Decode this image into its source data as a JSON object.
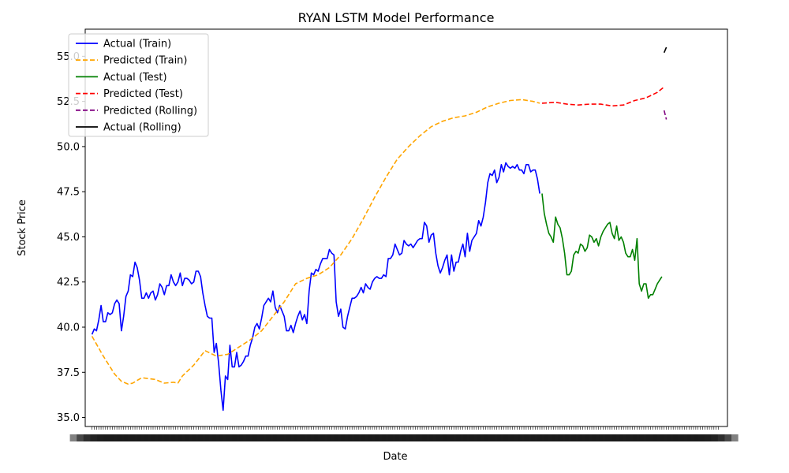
{
  "chart_data": {
    "type": "line",
    "title": "RYAN LSTM Model Performance",
    "xlabel": "Date",
    "ylabel": "Stock Price",
    "x_tick_labels_note": "",
    "xlim": [
      -3,
      281
    ],
    "ylim": [
      34.5,
      56.5
    ],
    "yticks": [
      35.0,
      37.5,
      40.0,
      42.5,
      45.0,
      47.5,
      50.0,
      52.5,
      55.0
    ],
    "ytick_labels": [
      "35.0",
      "37.5",
      "40.0",
      "42.5",
      "45.0",
      "47.5",
      "50.0",
      "52.5",
      "55.0"
    ],
    "x_tick_count": 278,
    "grid": false,
    "legend_position": "top-left",
    "series": [
      {
        "name": "Actual (Train)",
        "color": "#0000ff",
        "dash": "solid",
        "points": [
          [
            0,
            39.6
          ],
          [
            1,
            39.9
          ],
          [
            2,
            39.8
          ],
          [
            3,
            40.4
          ],
          [
            4,
            41.2
          ],
          [
            5,
            40.3
          ],
          [
            6,
            40.3
          ],
          [
            7,
            40.8
          ],
          [
            8,
            40.7
          ],
          [
            9,
            40.8
          ],
          [
            10,
            41.3
          ],
          [
            11,
            41.5
          ],
          [
            12,
            41.3
          ],
          [
            13,
            39.8
          ],
          [
            14,
            40.6
          ],
          [
            15,
            41.7
          ],
          [
            16,
            42.0
          ],
          [
            17,
            42.9
          ],
          [
            18,
            42.8
          ],
          [
            19,
            43.6
          ],
          [
            20,
            43.3
          ],
          [
            21,
            42.6
          ],
          [
            22,
            41.6
          ],
          [
            23,
            41.6
          ],
          [
            24,
            41.9
          ],
          [
            25,
            41.6
          ],
          [
            26,
            41.9
          ],
          [
            27,
            42.0
          ],
          [
            28,
            41.5
          ],
          [
            29,
            41.8
          ],
          [
            30,
            42.4
          ],
          [
            31,
            42.2
          ],
          [
            32,
            41.8
          ],
          [
            33,
            42.3
          ],
          [
            34,
            42.3
          ],
          [
            35,
            42.9
          ],
          [
            36,
            42.5
          ],
          [
            37,
            42.3
          ],
          [
            38,
            42.5
          ],
          [
            39,
            43.0
          ],
          [
            40,
            42.3
          ],
          [
            41,
            42.7
          ],
          [
            42,
            42.7
          ],
          [
            43,
            42.6
          ],
          [
            44,
            42.4
          ],
          [
            45,
            42.5
          ],
          [
            46,
            43.1
          ],
          [
            47,
            43.1
          ],
          [
            48,
            42.8
          ],
          [
            49,
            41.9
          ],
          [
            50,
            41.2
          ],
          [
            51,
            40.6
          ],
          [
            52,
            40.5
          ],
          [
            53,
            40.5
          ],
          [
            54,
            38.6
          ],
          [
            55,
            39.1
          ],
          [
            56,
            38.0
          ],
          [
            57,
            36.5
          ],
          [
            58,
            35.4
          ],
          [
            59,
            37.3
          ],
          [
            60,
            37.1
          ],
          [
            61,
            39.0
          ],
          [
            62,
            37.8
          ],
          [
            63,
            37.8
          ],
          [
            64,
            38.6
          ],
          [
            65,
            37.8
          ],
          [
            66,
            37.9
          ],
          [
            67,
            38.1
          ],
          [
            68,
            38.4
          ],
          [
            69,
            38.4
          ],
          [
            70,
            39.0
          ],
          [
            71,
            39.4
          ],
          [
            72,
            40.0
          ],
          [
            73,
            40.2
          ],
          [
            74,
            39.9
          ],
          [
            75,
            40.5
          ],
          [
            76,
            41.2
          ],
          [
            77,
            41.4
          ],
          [
            78,
            41.6
          ],
          [
            79,
            41.4
          ],
          [
            80,
            42.0
          ],
          [
            81,
            41.1
          ],
          [
            82,
            40.8
          ],
          [
            83,
            41.2
          ],
          [
            84,
            40.9
          ],
          [
            85,
            40.6
          ],
          [
            86,
            39.8
          ],
          [
            87,
            39.8
          ],
          [
            88,
            40.1
          ],
          [
            89,
            39.7
          ],
          [
            90,
            40.2
          ],
          [
            91,
            40.6
          ],
          [
            92,
            40.9
          ],
          [
            93,
            40.4
          ],
          [
            94,
            40.7
          ],
          [
            95,
            40.2
          ],
          [
            96,
            42.0
          ],
          [
            97,
            43.0
          ],
          [
            98,
            42.9
          ],
          [
            99,
            43.2
          ],
          [
            100,
            43.1
          ],
          [
            101,
            43.5
          ],
          [
            102,
            43.8
          ],
          [
            103,
            43.8
          ],
          [
            104,
            43.8
          ],
          [
            105,
            44.3
          ],
          [
            106,
            44.1
          ],
          [
            107,
            44.0
          ],
          [
            108,
            41.4
          ],
          [
            109,
            40.6
          ],
          [
            110,
            41.0
          ],
          [
            111,
            40.0
          ],
          [
            112,
            39.9
          ],
          [
            113,
            40.6
          ],
          [
            114,
            41.1
          ],
          [
            115,
            41.6
          ],
          [
            116,
            41.6
          ],
          [
            117,
            41.7
          ],
          [
            118,
            41.9
          ],
          [
            119,
            42.2
          ],
          [
            120,
            41.9
          ],
          [
            121,
            42.4
          ],
          [
            122,
            42.2
          ],
          [
            123,
            42.1
          ],
          [
            124,
            42.5
          ],
          [
            125,
            42.7
          ],
          [
            126,
            42.8
          ],
          [
            127,
            42.7
          ],
          [
            128,
            42.7
          ],
          [
            129,
            42.9
          ],
          [
            130,
            42.8
          ],
          [
            131,
            43.8
          ],
          [
            132,
            43.8
          ],
          [
            133,
            44.0
          ],
          [
            134,
            44.6
          ],
          [
            135,
            44.3
          ],
          [
            136,
            44.0
          ],
          [
            137,
            44.1
          ],
          [
            138,
            44.8
          ],
          [
            139,
            44.6
          ],
          [
            140,
            44.5
          ],
          [
            141,
            44.6
          ],
          [
            142,
            44.4
          ],
          [
            143,
            44.6
          ],
          [
            144,
            44.8
          ],
          [
            145,
            44.9
          ],
          [
            146,
            44.9
          ],
          [
            147,
            45.8
          ],
          [
            148,
            45.6
          ],
          [
            149,
            44.7
          ],
          [
            150,
            45.1
          ],
          [
            151,
            45.2
          ],
          [
            152,
            44.1
          ],
          [
            153,
            43.4
          ],
          [
            154,
            43.0
          ],
          [
            155,
            43.3
          ],
          [
            156,
            43.7
          ],
          [
            157,
            44.0
          ],
          [
            158,
            42.9
          ],
          [
            159,
            44.0
          ],
          [
            160,
            43.1
          ],
          [
            161,
            43.6
          ],
          [
            162,
            43.6
          ],
          [
            163,
            44.2
          ],
          [
            164,
            44.6
          ],
          [
            165,
            43.9
          ],
          [
            166,
            45.2
          ],
          [
            167,
            44.2
          ],
          [
            168,
            44.8
          ],
          [
            169,
            45.0
          ],
          [
            170,
            45.2
          ],
          [
            171,
            45.9
          ],
          [
            172,
            45.6
          ],
          [
            173,
            46.1
          ],
          [
            174,
            46.9
          ],
          [
            175,
            48.0
          ],
          [
            176,
            48.5
          ],
          [
            177,
            48.4
          ],
          [
            178,
            48.7
          ],
          [
            179,
            48.0
          ],
          [
            180,
            48.3
          ],
          [
            181,
            49.0
          ],
          [
            182,
            48.6
          ],
          [
            183,
            49.1
          ],
          [
            184,
            48.9
          ],
          [
            185,
            48.8
          ],
          [
            186,
            48.9
          ],
          [
            187,
            48.8
          ],
          [
            188,
            49.0
          ],
          [
            189,
            48.7
          ],
          [
            190,
            48.7
          ],
          [
            191,
            48.5
          ],
          [
            192,
            49.0
          ],
          [
            193,
            49.0
          ],
          [
            194,
            48.6
          ],
          [
            195,
            48.7
          ],
          [
            196,
            48.7
          ],
          [
            197,
            48.2
          ],
          [
            198,
            47.4
          ]
        ]
      },
      {
        "name": "Predicted (Train)",
        "color": "#ffa500",
        "dash": "dashed",
        "points": [
          [
            0,
            39.5
          ],
          [
            5,
            38.4
          ],
          [
            10,
            37.4
          ],
          [
            13,
            37.0
          ],
          [
            16,
            36.85
          ],
          [
            18,
            36.9
          ],
          [
            22,
            37.2
          ],
          [
            28,
            37.1
          ],
          [
            32,
            36.9
          ],
          [
            36,
            36.95
          ],
          [
            38,
            36.9
          ],
          [
            40,
            37.3
          ],
          [
            45,
            37.9
          ],
          [
            50,
            38.7
          ],
          [
            55,
            38.4
          ],
          [
            60,
            38.5
          ],
          [
            65,
            38.9
          ],
          [
            70,
            39.3
          ],
          [
            75,
            39.8
          ],
          [
            80,
            40.6
          ],
          [
            85,
            41.4
          ],
          [
            90,
            42.4
          ],
          [
            95,
            42.7
          ],
          [
            100,
            42.9
          ],
          [
            105,
            43.3
          ],
          [
            110,
            44.0
          ],
          [
            115,
            44.9
          ],
          [
            120,
            46.0
          ],
          [
            125,
            47.2
          ],
          [
            130,
            48.3
          ],
          [
            135,
            49.3
          ],
          [
            140,
            50.0
          ],
          [
            145,
            50.6
          ],
          [
            150,
            51.1
          ],
          [
            155,
            51.4
          ],
          [
            160,
            51.6
          ],
          [
            165,
            51.7
          ],
          [
            170,
            51.9
          ],
          [
            175,
            52.2
          ],
          [
            180,
            52.4
          ],
          [
            185,
            52.55
          ],
          [
            190,
            52.6
          ],
          [
            195,
            52.5
          ],
          [
            198,
            52.4
          ]
        ]
      },
      {
        "name": "Actual (Test)",
        "color": "#008000",
        "dash": "solid",
        "points": [
          [
            199,
            47.4
          ],
          [
            200,
            46.3
          ],
          [
            201,
            45.7
          ],
          [
            202,
            45.2
          ],
          [
            203,
            45.0
          ],
          [
            204,
            44.7
          ],
          [
            205,
            46.1
          ],
          [
            206,
            45.7
          ],
          [
            207,
            45.5
          ],
          [
            208,
            44.9
          ],
          [
            209,
            44.1
          ],
          [
            210,
            42.9
          ],
          [
            211,
            42.9
          ],
          [
            212,
            43.1
          ],
          [
            213,
            44.0
          ],
          [
            214,
            44.2
          ],
          [
            215,
            44.1
          ],
          [
            216,
            44.6
          ],
          [
            217,
            44.5
          ],
          [
            218,
            44.2
          ],
          [
            219,
            44.4
          ],
          [
            220,
            45.1
          ],
          [
            221,
            45.0
          ],
          [
            222,
            44.7
          ],
          [
            223,
            44.9
          ],
          [
            224,
            44.5
          ],
          [
            225,
            45.0
          ],
          [
            226,
            45.3
          ],
          [
            227,
            45.5
          ],
          [
            228,
            45.7
          ],
          [
            229,
            45.8
          ],
          [
            230,
            45.2
          ],
          [
            231,
            44.9
          ],
          [
            232,
            45.6
          ],
          [
            233,
            44.8
          ],
          [
            234,
            45.0
          ],
          [
            235,
            44.7
          ],
          [
            236,
            44.1
          ],
          [
            237,
            43.9
          ],
          [
            238,
            43.9
          ],
          [
            239,
            44.3
          ],
          [
            240,
            43.7
          ],
          [
            241,
            44.9
          ],
          [
            242,
            42.4
          ],
          [
            243,
            42.0
          ],
          [
            244,
            42.4
          ],
          [
            245,
            42.4
          ],
          [
            246,
            41.6
          ],
          [
            247,
            41.8
          ],
          [
            248,
            41.8
          ],
          [
            249,
            42.1
          ],
          [
            250,
            42.4
          ],
          [
            251,
            42.6
          ],
          [
            252,
            42.8
          ]
        ]
      },
      {
        "name": "Predicted (Test)",
        "color": "#ff0000",
        "dash": "dashed",
        "points": [
          [
            199,
            52.4
          ],
          [
            205,
            52.45
          ],
          [
            210,
            52.35
          ],
          [
            215,
            52.3
          ],
          [
            220,
            52.35
          ],
          [
            225,
            52.35
          ],
          [
            230,
            52.25
          ],
          [
            235,
            52.3
          ],
          [
            240,
            52.55
          ],
          [
            245,
            52.7
          ],
          [
            250,
            53.0
          ],
          [
            253,
            53.3
          ]
        ]
      },
      {
        "name": "Predicted (Rolling)",
        "color": "#800080",
        "dash": "dashed",
        "points": [
          [
            253,
            52.0
          ],
          [
            254,
            51.5
          ]
        ]
      },
      {
        "name": "Actual (Rolling)",
        "color": "#000000",
        "dash": "solid",
        "points": [
          [
            253,
            55.2
          ],
          [
            254,
            55.5
          ]
        ]
      }
    ]
  }
}
